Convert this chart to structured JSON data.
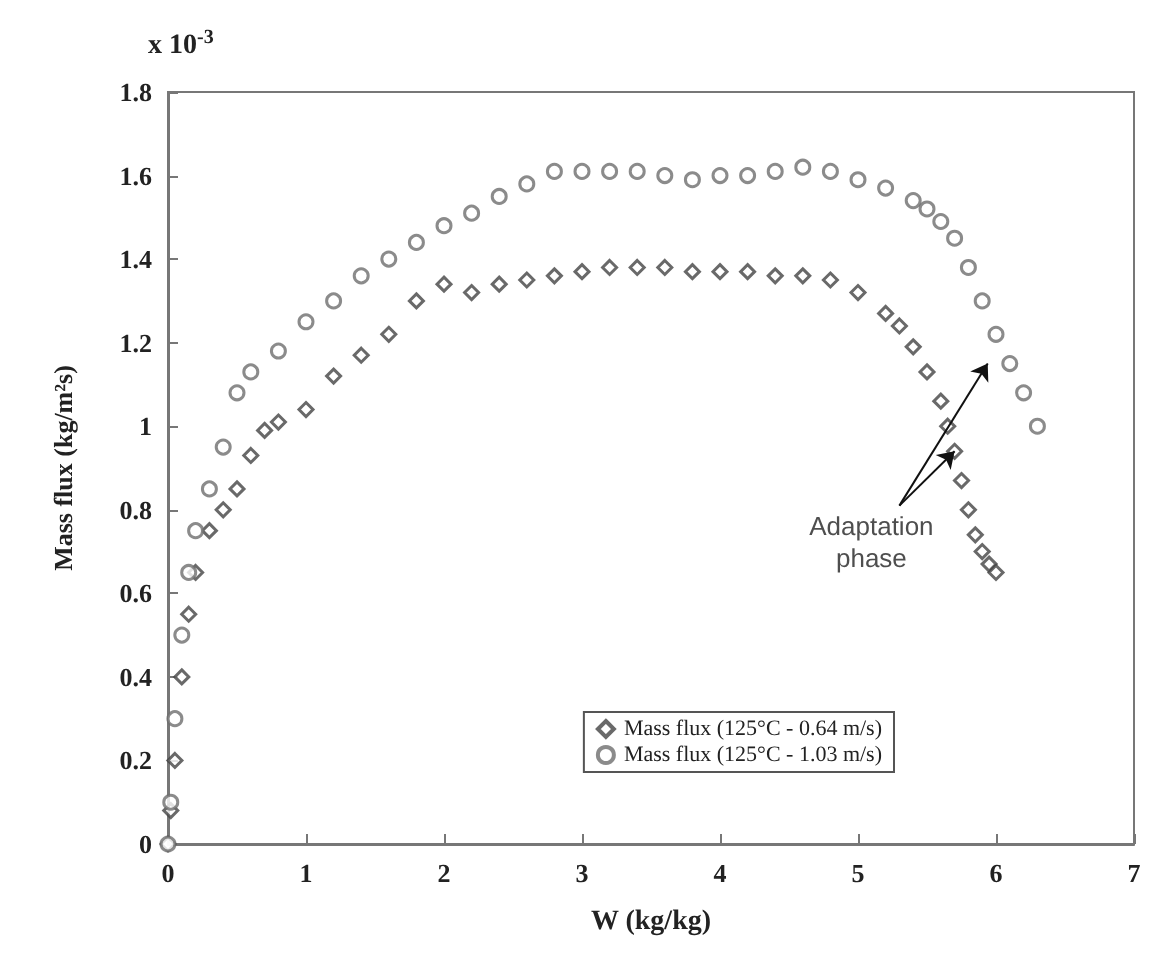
{
  "chart_data": {
    "type": "scatter",
    "xlabel": "W (kg/kg)",
    "ylabel": "Mass flux (kg/m²s)",
    "xlim": [
      0,
      7
    ],
    "xticks": [
      0,
      1,
      2,
      3,
      4,
      5,
      6,
      7
    ],
    "ylim": [
      0,
      1.8
    ],
    "yticks": [
      0,
      0.2,
      0.4,
      0.6,
      0.8,
      1,
      1.2,
      1.4,
      1.6,
      1.8
    ],
    "grid": false,
    "legend": "bottom right",
    "annotations": [
      "x 10$^{-3}$",
      {
        "text": "Adaptation\nphase",
        "x": 5.7,
        "y": 0.94
      }
    ],
    "series": [
      {
        "name": "Mass flux (125°C - 0.64 m/s)",
        "color": "#444444",
        "marker": "diamond",
        "x": [
          0,
          0.02,
          0.05,
          0.1,
          0.15,
          0.2,
          0.3,
          0.4,
          0.5,
          0.6,
          0.7,
          0.8,
          1.0,
          1.2,
          1.4,
          1.6,
          1.8,
          2.0,
          2.2,
          2.4,
          2.6,
          2.8,
          3.0,
          3.2,
          3.4,
          3.6,
          3.8,
          4.0,
          4.2,
          4.4,
          4.6,
          4.8,
          5.0,
          5.2,
          5.3,
          5.4,
          5.5,
          5.6,
          5.65,
          5.7,
          5.75,
          5.8,
          5.85,
          5.9,
          5.95,
          6.0
        ],
        "values": [
          0,
          0.08,
          0.2,
          0.4,
          0.55,
          0.65,
          0.75,
          0.8,
          0.85,
          0.93,
          0.99,
          1.01,
          1.04,
          1.12,
          1.17,
          1.22,
          1.3,
          1.34,
          1.32,
          1.34,
          1.35,
          1.36,
          1.37,
          1.38,
          1.38,
          1.38,
          1.37,
          1.37,
          1.37,
          1.36,
          1.36,
          1.35,
          1.32,
          1.27,
          1.24,
          1.19,
          1.13,
          1.06,
          1.0,
          0.94,
          0.87,
          0.8,
          0.74,
          0.7,
          0.67,
          0.65
        ]
      },
      {
        "name": "Mass flux (125°C - 1.03 m/s)",
        "color": "#6e6e6e",
        "marker": "circle",
        "x": [
          0,
          0.02,
          0.05,
          0.1,
          0.15,
          0.2,
          0.3,
          0.4,
          0.5,
          0.6,
          0.8,
          1.0,
          1.2,
          1.4,
          1.6,
          1.8,
          2.0,
          2.2,
          2.4,
          2.6,
          2.8,
          3.0,
          3.2,
          3.4,
          3.6,
          3.8,
          4.0,
          4.2,
          4.4,
          4.6,
          4.8,
          5.0,
          5.2,
          5.4,
          5.5,
          5.6,
          5.7,
          5.8,
          5.9,
          6.0,
          6.1,
          6.2,
          6.3
        ],
        "values": [
          0,
          0.1,
          0.3,
          0.5,
          0.65,
          0.75,
          0.85,
          0.95,
          1.08,
          1.13,
          1.18,
          1.25,
          1.3,
          1.36,
          1.4,
          1.44,
          1.48,
          1.51,
          1.55,
          1.58,
          1.61,
          1.61,
          1.61,
          1.61,
          1.6,
          1.59,
          1.6,
          1.6,
          1.61,
          1.62,
          1.61,
          1.59,
          1.57,
          1.54,
          1.52,
          1.49,
          1.45,
          1.38,
          1.3,
          1.22,
          1.15,
          1.08,
          1.0
        ]
      }
    ]
  }
}
